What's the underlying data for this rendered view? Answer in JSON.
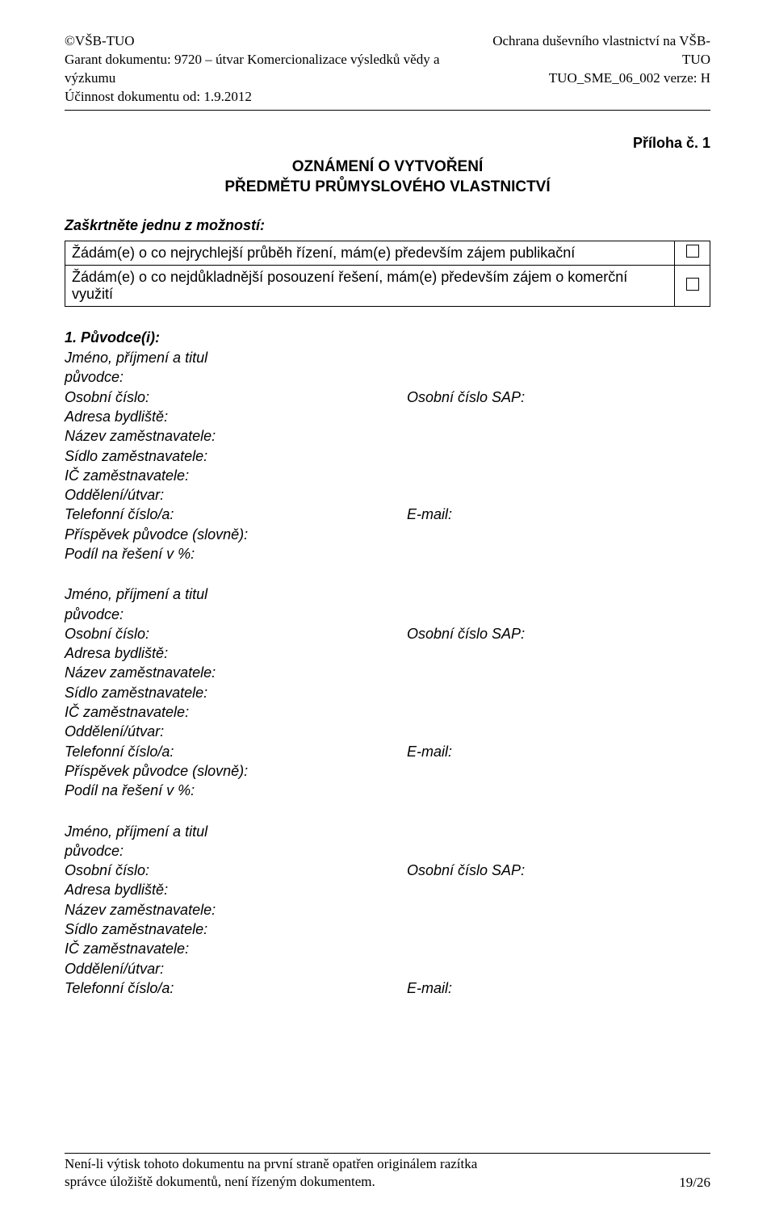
{
  "header": {
    "left": {
      "line1": "©VŠB-TUO",
      "line2": "Garant dokumentu: 9720 – útvar Komercionalizace výsledků vědy a výzkumu",
      "line3": "Účinnost dokumentu od: 1.9.2012"
    },
    "right": {
      "line1": "Ochrana duševního vlastnictví na VŠB-TUO",
      "line2": "TUO_SME_06_002 verze: H"
    }
  },
  "attachment_label": "Příloha č. 1",
  "form_title": {
    "line1": "OZNÁMENÍ  O  VYTVOŘENÍ",
    "line2": "PŘEDMĚTU  PRŮMYSLOVÉHO  VLASTNICTVÍ"
  },
  "instruction": "Zaškrtněte jednu z možností:",
  "options": [
    "Žádám(e) o co nejrychlejší průběh řízení, mám(e) především zájem publikační",
    "Žádám(e) o co nejdůkladnější posouzení řešení, mám(e) především zájem o komerční využití"
  ],
  "section1_heading": "1. Původce(i):",
  "person_fields": {
    "name_label": "Jméno, příjmení a titul",
    "originator_label": "původce:",
    "personal_number": "Osobní číslo:",
    "personal_number_sap": "Osobní číslo SAP:",
    "address": "Adresa bydliště:",
    "employer_name": "Název zaměstnavatele:",
    "employer_seat": "Sídlo zaměstnavatele:",
    "employer_id": "IČ zaměstnavatele:",
    "department": "Oddělení/útvar:",
    "phone": "Telefonní číslo/a:",
    "email": "E-mail:",
    "contribution": "Příspěvek původce (slovně):",
    "share": "Podíl na řešení v %:"
  },
  "footer": {
    "line1": "Není-li výtisk tohoto dokumentu na první straně opatřen originálem razítka",
    "line2": "správce úložiště dokumentů, není řízeným dokumentem.",
    "page": "19/26"
  }
}
